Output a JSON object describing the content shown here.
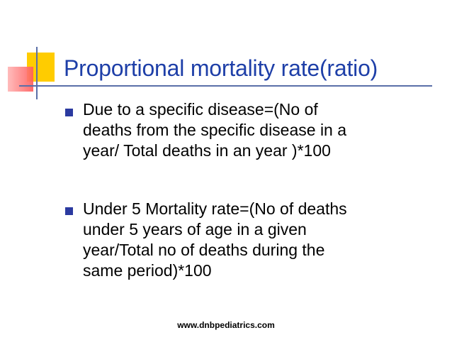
{
  "slide": {
    "title": "Proportional mortality rate(ratio)",
    "bullets": [
      {
        "lines": [
          "Due to a specific disease=(No of",
          "deaths from the specific disease in a",
          "year/ Total deaths in an year )*100"
        ]
      },
      {
        "lines": [
          "Under 5 Mortality rate=(No of deaths",
          "under 5 years of age in a given",
          "year/Total no of deaths during the",
          "same period)*100"
        ]
      }
    ],
    "footer": "www.dnbpediatrics.com"
  },
  "colors": {
    "title": "#1e3fa8",
    "bullet": "#2b3aa0",
    "logo_yellow": "#ffcc00",
    "logo_red": "#ff5b5b",
    "logo_lines": "#5a6fa8"
  }
}
